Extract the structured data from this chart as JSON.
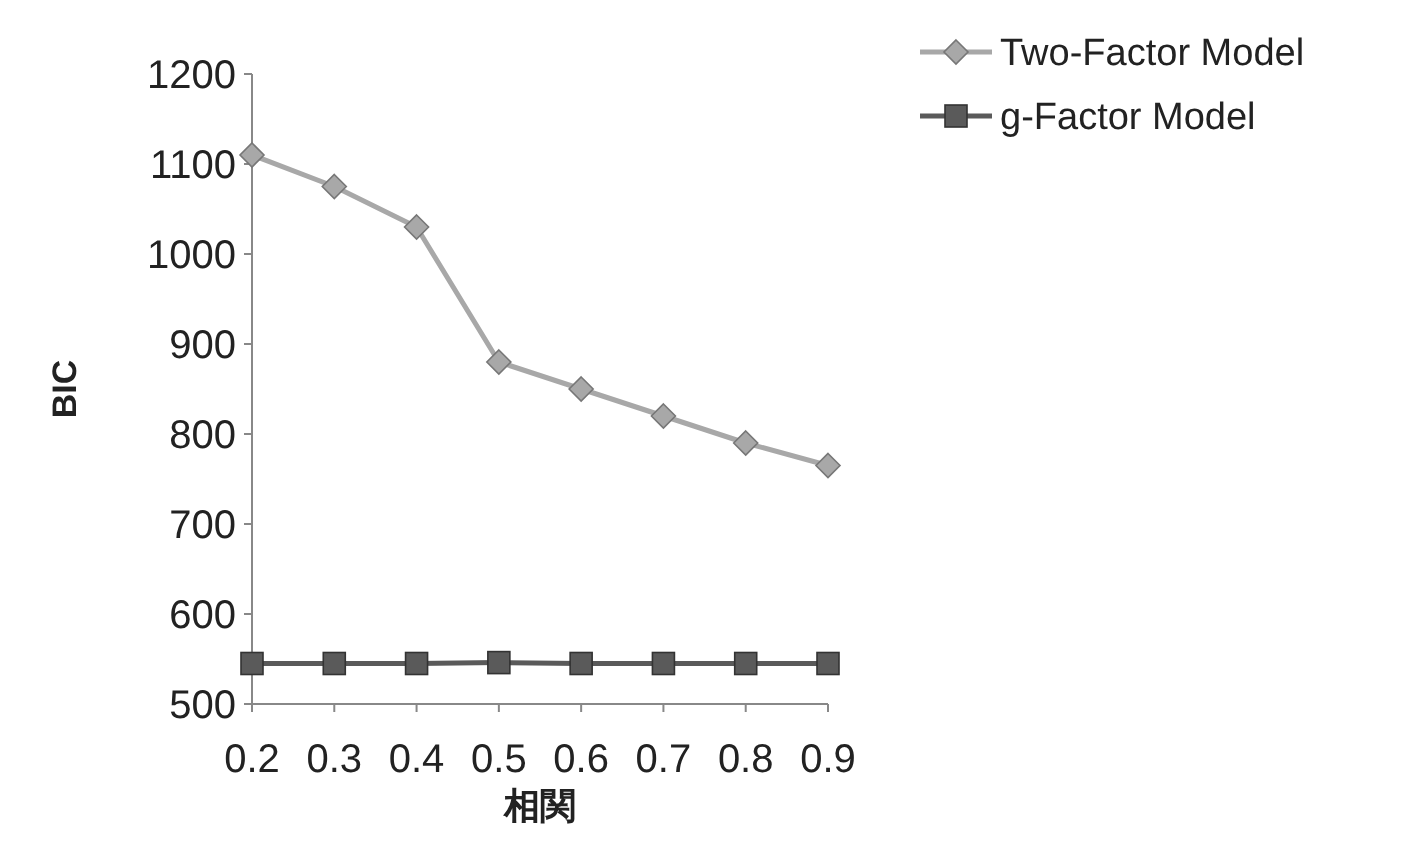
{
  "chart_data": {
    "type": "line",
    "xlabel": "相関",
    "ylabel": "BIC",
    "x": [
      0.2,
      0.3,
      0.4,
      0.5,
      0.6,
      0.7,
      0.8,
      0.9
    ],
    "xlim": [
      0.2,
      0.9
    ],
    "xticks": [
      {
        "value": 0.2,
        "label": "0.2"
      },
      {
        "value": 0.3,
        "label": "0.3"
      },
      {
        "value": 0.4,
        "label": "0.4"
      },
      {
        "value": 0.5,
        "label": "0.5"
      },
      {
        "value": 0.6,
        "label": "0.6"
      },
      {
        "value": 0.7,
        "label": "0.7"
      },
      {
        "value": 0.8,
        "label": "0.8"
      },
      {
        "value": 0.9,
        "label": "0.9"
      }
    ],
    "ylim": [
      500,
      1200
    ],
    "yticks": [
      500,
      600,
      700,
      800,
      900,
      1000,
      1100,
      1200
    ],
    "legend": "top right",
    "grid": false,
    "series": [
      {
        "name": "Two-Factor Model",
        "color": "#a8a8a8",
        "marker": "diamond",
        "values": [
          1110,
          1075,
          1030,
          880,
          850,
          820,
          790,
          765
        ]
      },
      {
        "name": "g-Factor Model",
        "color": "#5a5a5a",
        "marker": "square",
        "values": [
          545,
          545,
          545,
          546,
          545,
          545,
          545,
          545
        ]
      }
    ]
  }
}
